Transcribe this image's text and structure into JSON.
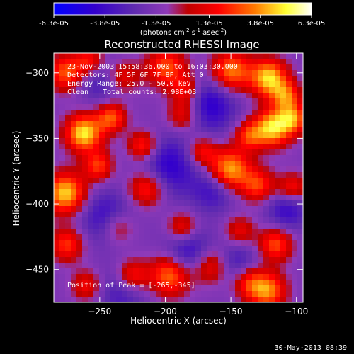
{
  "chart_data": {
    "type": "heatmap",
    "title": "Reconstructed RHESSI Image",
    "xlabel": "Heliocentric X (arcsec)",
    "ylabel": "Heliocentric Y (arcsec)",
    "xlim": [
      -285,
      -95
    ],
    "ylim": [
      -475,
      -285
    ],
    "xticks": [
      {
        "value": -250,
        "label": "−250"
      },
      {
        "value": -200,
        "label": "−200"
      },
      {
        "value": -150,
        "label": "−150"
      },
      {
        "value": -100,
        "label": "−100"
      }
    ],
    "yticks": [
      {
        "value": -300,
        "label": "−300"
      },
      {
        "value": -350,
        "label": "−350"
      },
      {
        "value": -400,
        "label": "−400"
      },
      {
        "value": -450,
        "label": "−450"
      }
    ],
    "annotations": {
      "time_range": "23-Nov-2003 15:58:36.000 to 16:03:30.000",
      "detectors": "Detectors: 4F 5F 6F 7F 8F, Att 0",
      "energy_range": "Energy Range: 25.0 - 50.0 keV",
      "clean": "Clean",
      "total_counts": "Total counts: 2.98E+03",
      "peak_position": "Position of Peak = [-265,-345]"
    },
    "colorbar": {
      "min": -6.3e-05,
      "max": 6.3e-05,
      "ticks": [
        {
          "value": -6.3e-05,
          "label": "-6.3e-05"
        },
        {
          "value": -3.8e-05,
          "label": "-3.8e-05"
        },
        {
          "value": -1.3e-05,
          "label": "-1.3e-05"
        },
        {
          "value": 1.3e-05,
          "label": "1.3e-05"
        },
        {
          "value": 3.8e-05,
          "label": "3.8e-05"
        },
        {
          "value": 6.3e-05,
          "label": "6.3e-05"
        }
      ],
      "units_prefix": "(photons cm",
      "units_sup1": "-2",
      "units_mid": " s",
      "units_sup2": "-1",
      "units_mid2": " asec",
      "units_sup3": "-2",
      "units_suffix": ")"
    },
    "colors": {
      "background": "#000000",
      "foreground": "#ffffff",
      "colormap": [
        "#0000ff",
        "#3300cc",
        "#5f2bb0",
        "#8f3ab8",
        "#c00000",
        "#ff0000",
        "#ff7a00",
        "#ffff33",
        "#ffffff"
      ]
    },
    "sources": [
      {
        "x": -275,
        "y": -300,
        "amp": 4.5e-05,
        "sigma": 10
      },
      {
        "x": -257,
        "y": -291,
        "amp": 3.8e-05,
        "sigma": 8
      },
      {
        "x": -233,
        "y": -303,
        "amp": 3.2e-05,
        "sigma": 9
      },
      {
        "x": -199,
        "y": -296,
        "amp": 4.2e-05,
        "sigma": 11
      },
      {
        "x": -184,
        "y": -313,
        "amp": 3.4e-05,
        "sigma": 8
      },
      {
        "x": -150,
        "y": -299,
        "amp": 5.1e-05,
        "sigma": 11
      },
      {
        "x": -121,
        "y": -304,
        "amp": 6e-05,
        "sigma": 10
      },
      {
        "x": -108,
        "y": -318,
        "amp": 4.1e-05,
        "sigma": 8
      },
      {
        "x": -262,
        "y": -346,
        "amp": 6.3e-05,
        "sigma": 10
      },
      {
        "x": -241,
        "y": -334,
        "amp": 4.3e-05,
        "sigma": 8
      },
      {
        "x": -217,
        "y": -356,
        "amp": 4.1e-05,
        "sigma": 8
      },
      {
        "x": -186,
        "y": -332,
        "amp": 3.5e-05,
        "sigma": 9
      },
      {
        "x": -136,
        "y": -348,
        "amp": 3.6e-05,
        "sigma": 8
      },
      {
        "x": -118,
        "y": -342,
        "amp": 6.1e-05,
        "sigma": 10
      },
      {
        "x": -102,
        "y": -335,
        "amp": 4.3e-05,
        "sigma": 8
      },
      {
        "x": -276,
        "y": -392,
        "amp": 6e-05,
        "sigma": 11
      },
      {
        "x": -251,
        "y": -371,
        "amp": 3.8e-05,
        "sigma": 8
      },
      {
        "x": -214,
        "y": -388,
        "amp": 4.2e-05,
        "sigma": 10
      },
      {
        "x": -172,
        "y": -360,
        "amp": 3.3e-05,
        "sigma": 8
      },
      {
        "x": -151,
        "y": -374,
        "amp": 5.7e-05,
        "sigma": 11
      },
      {
        "x": -129,
        "y": -386,
        "amp": 3.8e-05,
        "sigma": 9
      },
      {
        "x": -103,
        "y": -388,
        "amp": 3.5e-05,
        "sigma": 8
      },
      {
        "x": -275,
        "y": -431,
        "amp": 3.8e-05,
        "sigma": 9
      },
      {
        "x": -236,
        "y": -418,
        "amp": 2.9e-05,
        "sigma": 9
      },
      {
        "x": -187,
        "y": -418,
        "amp": 3.2e-05,
        "sigma": 8
      },
      {
        "x": -143,
        "y": -421,
        "amp": 2.8e-05,
        "sigma": 8
      },
      {
        "x": -116,
        "y": -431,
        "amp": 4.2e-05,
        "sigma": 9
      },
      {
        "x": -260,
        "y": -462,
        "amp": 3e-05,
        "sigma": 8
      },
      {
        "x": -225,
        "y": -455,
        "amp": 3.9e-05,
        "sigma": 9
      },
      {
        "x": -196,
        "y": -454,
        "amp": 5.1e-05,
        "sigma": 11
      },
      {
        "x": -165,
        "y": -447,
        "amp": 4e-05,
        "sigma": 10
      },
      {
        "x": -137,
        "y": -459,
        "amp": 3.6e-05,
        "sigma": 9
      },
      {
        "x": -122,
        "y": -466,
        "amp": 4.9e-05,
        "sigma": 10
      },
      {
        "x": -250,
        "y": -304,
        "amp": -2.4e-05,
        "sigma": 13
      },
      {
        "x": -167,
        "y": -324,
        "amp": -3.4e-05,
        "sigma": 15
      },
      {
        "x": -198,
        "y": -372,
        "amp": -3.2e-05,
        "sigma": 16
      },
      {
        "x": -163,
        "y": -390,
        "amp": -2.6e-05,
        "sigma": 11
      },
      {
        "x": -107,
        "y": -404,
        "amp": -2.8e-05,
        "sigma": 11
      },
      {
        "x": -245,
        "y": -410,
        "amp": -2.8e-05,
        "sigma": 14
      },
      {
        "x": -182,
        "y": -438,
        "amp": -3.3e-05,
        "sigma": 13
      },
      {
        "x": -232,
        "y": -466,
        "amp": -2.3e-05,
        "sigma": 13
      },
      {
        "x": -146,
        "y": -446,
        "amp": -2.6e-05,
        "sigma": 12
      }
    ]
  },
  "footer": {
    "timestamp": "30-May-2013 08:39"
  }
}
